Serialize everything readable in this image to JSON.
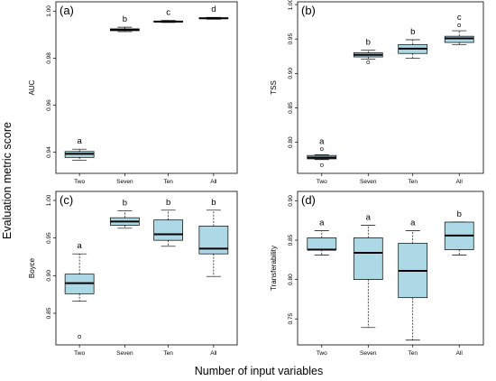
{
  "figure": {
    "ylabel": "Evaluation metric score",
    "xlabel": "Number of input variables"
  },
  "colors": {
    "box_fill": "#add8e6",
    "stroke": "#000000"
  },
  "chart_data": [
    {
      "type": "box",
      "panel_label": "(a)",
      "ylabel": "AUC",
      "categories": [
        "Two",
        "Seven",
        "Ten",
        "All"
      ],
      "ylim": [
        0.931,
        1.004
      ],
      "yticks": [
        0.94,
        0.96,
        0.98,
        1.0
      ],
      "ytick_labels": [
        "0.94",
        "0.96",
        "0.98",
        "1.00"
      ],
      "boxes": [
        {
          "whislo": 0.9365,
          "q1": 0.9378,
          "med": 0.9393,
          "q3": 0.9403,
          "whishi": 0.9413,
          "fliers": []
        },
        {
          "whislo": 0.9913,
          "q1": 0.9917,
          "med": 0.9921,
          "q3": 0.9925,
          "whishi": 0.9932,
          "fliers": []
        },
        {
          "whislo": 0.9952,
          "q1": 0.9954,
          "med": 0.9956,
          "q3": 0.9958,
          "whishi": 0.9961,
          "fliers": []
        },
        {
          "whislo": 0.9966,
          "q1": 0.9968,
          "med": 0.997,
          "q3": 0.9972,
          "whishi": 0.9974,
          "fliers": []
        }
      ],
      "letters": [
        "a",
        "b",
        "c",
        "d"
      ]
    },
    {
      "type": "box",
      "panel_label": "(b)",
      "ylabel": "TSS",
      "categories": [
        "Two",
        "Seven",
        "Ten",
        "All"
      ],
      "ylim": [
        0.755,
        1.004
      ],
      "yticks": [
        0.8,
        0.85,
        0.9,
        0.95,
        1.0
      ],
      "ytick_labels": [
        "0.80",
        "0.85",
        "0.90",
        "0.95",
        "1.00"
      ],
      "boxes": [
        {
          "whislo": 0.775,
          "q1": 0.776,
          "med": 0.778,
          "q3": 0.781,
          "whishi": 0.782,
          "fliers": [
            0.767,
            0.79
          ]
        },
        {
          "whislo": 0.921,
          "q1": 0.924,
          "med": 0.927,
          "q3": 0.93,
          "whishi": 0.934,
          "fliers": [
            0.916
          ]
        },
        {
          "whislo": 0.922,
          "q1": 0.929,
          "med": 0.936,
          "q3": 0.942,
          "whishi": 0.949,
          "fliers": []
        },
        {
          "whislo": 0.942,
          "q1": 0.945,
          "med": 0.951,
          "q3": 0.954,
          "whishi": 0.962,
          "fliers": [
            0.97
          ]
        }
      ],
      "letters": [
        "a",
        "b",
        "b",
        "c"
      ]
    },
    {
      "type": "box",
      "panel_label": "(c)",
      "ylabel": "Boyce",
      "categories": [
        "Two",
        "Seven",
        "Ten",
        "All"
      ],
      "ylim": [
        0.808,
        1.012
      ],
      "yticks": [
        0.85,
        0.9,
        0.95,
        1.0
      ],
      "ytick_labels": [
        "0.85",
        "0.90",
        "0.95",
        "1.00"
      ],
      "boxes": [
        {
          "whislo": 0.866,
          "q1": 0.876,
          "med": 0.89,
          "q3": 0.902,
          "whishi": 0.929,
          "fliers": [
            0.819
          ]
        },
        {
          "whislo": 0.963,
          "q1": 0.967,
          "med": 0.972,
          "q3": 0.977,
          "whishi": 0.986,
          "fliers": []
        },
        {
          "whislo": 0.939,
          "q1": 0.947,
          "med": 0.955,
          "q3": 0.974,
          "whishi": 0.987,
          "fliers": []
        },
        {
          "whislo": 0.899,
          "q1": 0.929,
          "med": 0.936,
          "q3": 0.966,
          "whishi": 0.987,
          "fliers": []
        }
      ],
      "letters": [
        "a",
        "b",
        "b",
        "b"
      ]
    },
    {
      "type": "box",
      "panel_label": "(d)",
      "ylabel": "Transferability",
      "categories": [
        "Two",
        "Seven",
        "Ten",
        "All"
      ],
      "ylim": [
        0.717,
        0.912
      ],
      "yticks": [
        0.75,
        0.8,
        0.85,
        0.9
      ],
      "ytick_labels": [
        "0.75",
        "0.80",
        "0.85",
        "0.90"
      ],
      "boxes": [
        {
          "whislo": 0.831,
          "q1": 0.838,
          "med": 0.838,
          "q3": 0.853,
          "whishi": 0.862,
          "fliers": []
        },
        {
          "whislo": 0.739,
          "q1": 0.8,
          "med": 0.834,
          "q3": 0.853,
          "whishi": 0.869,
          "fliers": []
        },
        {
          "whislo": 0.723,
          "q1": 0.777,
          "med": 0.811,
          "q3": 0.846,
          "whishi": 0.862,
          "fliers": []
        },
        {
          "whislo": 0.831,
          "q1": 0.838,
          "med": 0.856,
          "q3": 0.873,
          "whishi": 0.873,
          "fliers": []
        }
      ],
      "letters": [
        "a",
        "a",
        "a",
        "b"
      ]
    }
  ]
}
